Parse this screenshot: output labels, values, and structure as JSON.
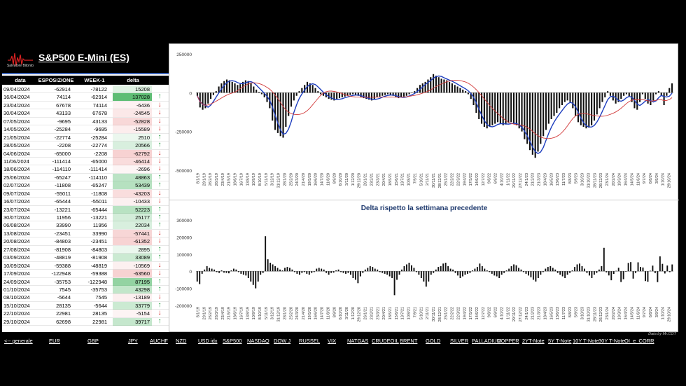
{
  "header": {
    "logo_text": "Salvatore Bitonto",
    "title": "S&P500 E-Mini (ES)"
  },
  "columns": {
    "date": "data",
    "exposure": "ESPOSIZIONE LS",
    "week": "WEEK-1",
    "delta": "delta"
  },
  "rows": [
    {
      "date": "09/04/2024",
      "exp": "-62914",
      "wk": "-78122",
      "delta": "15208",
      "dir": ""
    },
    {
      "date": "16/04/2024",
      "exp": "74114",
      "wk": "-62914",
      "delta": "137028",
      "dir": "up"
    },
    {
      "date": "23/04/2024",
      "exp": "67678",
      "wk": "74114",
      "delta": "-6436",
      "dir": "down"
    },
    {
      "date": "30/04/2024",
      "exp": "43133",
      "wk": "67678",
      "delta": "-24545",
      "dir": "down"
    },
    {
      "date": "07/05/2024",
      "exp": "-9695",
      "wk": "43133",
      "delta": "-52828",
      "dir": "down"
    },
    {
      "date": "14/05/2024",
      "exp": "-25284",
      "wk": "-9695",
      "delta": "-15589",
      "dir": "down"
    },
    {
      "date": "21/05/2024",
      "exp": "-22774",
      "wk": "-25284",
      "delta": "2510",
      "dir": "up"
    },
    {
      "date": "28/05/2024",
      "exp": "-2208",
      "wk": "-22774",
      "delta": "20566",
      "dir": "up"
    },
    {
      "date": "04/06/2024",
      "exp": "-65000",
      "wk": "-2208",
      "delta": "-62792",
      "dir": "down"
    },
    {
      "date": "11/06/2024",
      "exp": "-111414",
      "wk": "-65000",
      "delta": "-46414",
      "dir": "down"
    },
    {
      "date": "18/06/2024",
      "exp": "-114110",
      "wk": "-111414",
      "delta": "-2696",
      "dir": "down"
    },
    {
      "date": "25/06/2024",
      "exp": "-65247",
      "wk": "-114110",
      "delta": "48863",
      "dir": "up"
    },
    {
      "date": "02/07/2024",
      "exp": "-11808",
      "wk": "-65247",
      "delta": "53439",
      "dir": "up"
    },
    {
      "date": "09/07/2024",
      "exp": "-55011",
      "wk": "-11808",
      "delta": "-43203",
      "dir": "down"
    },
    {
      "date": "16/07/2024",
      "exp": "-65444",
      "wk": "-55011",
      "delta": "-10433",
      "dir": "down"
    },
    {
      "date": "23/07/2024",
      "exp": "-13221",
      "wk": "-65444",
      "delta": "52223",
      "dir": "up"
    },
    {
      "date": "30/07/2024",
      "exp": "11956",
      "wk": "-13221",
      "delta": "25177",
      "dir": "up"
    },
    {
      "date": "06/08/2024",
      "exp": "33990",
      "wk": "11956",
      "delta": "22034",
      "dir": "up"
    },
    {
      "date": "13/08/2024",
      "exp": "-23451",
      "wk": "33990",
      "delta": "-57441",
      "dir": "down"
    },
    {
      "date": "20/08/2024",
      "exp": "-84803",
      "wk": "-23451",
      "delta": "-61352",
      "dir": "down"
    },
    {
      "date": "27/08/2024",
      "exp": "-81908",
      "wk": "-84803",
      "delta": "2895",
      "dir": "up"
    },
    {
      "date": "03/09/2024",
      "exp": "-48819",
      "wk": "-81908",
      "delta": "33089",
      "dir": "up"
    },
    {
      "date": "10/09/2024",
      "exp": "-59388",
      "wk": "-48819",
      "delta": "-10569",
      "dir": "down"
    },
    {
      "date": "17/09/2024",
      "exp": "-122948",
      "wk": "-59388",
      "delta": "-63560",
      "dir": "down"
    },
    {
      "date": "24/09/2024",
      "exp": "-35753",
      "wk": "-122948",
      "delta": "87195",
      "dir": "up"
    },
    {
      "date": "01/10/2024",
      "exp": "7545",
      "wk": "-35753",
      "delta": "43298",
      "dir": "up"
    },
    {
      "date": "08/10/2024",
      "exp": "-5644",
      "wk": "7545",
      "delta": "-13189",
      "dir": "down"
    },
    {
      "date": "15/10/2024",
      "exp": "28135",
      "wk": "-5644",
      "delta": "33779",
      "dir": "up"
    },
    {
      "date": "22/10/2024",
      "exp": "22981",
      "wk": "28135",
      "delta": "-5154",
      "dir": "down"
    },
    {
      "date": "29/10/2024",
      "exp": "62698",
      "wk": "22981",
      "delta": "39717",
      "dir": "up"
    }
  ],
  "colors": {
    "up_bg": "#5ebd74",
    "down_bg": "#f3b9b9",
    "ma_fast": "#1f3fbf",
    "ma_slow": "#d23a3a",
    "bar": "#111111"
  },
  "chart_data": [
    {
      "type": "bar",
      "title": "",
      "ylim": [
        -500000,
        250000
      ],
      "yticks": [
        "250000",
        "0",
        "-250000",
        "-500000"
      ],
      "xtick_labels": [
        "8/1/19",
        "29/1/19",
        "26/2/19",
        "26/3/19",
        "23/4/19",
        "21/5/19",
        "18/6/19",
        "16/7/19",
        "13/8/19",
        "10/9/19",
        "8/10/19",
        "5/11/19",
        "3/12/19",
        "31/12/19",
        "28/1/20",
        "25/2/20",
        "24/3/20",
        "21/4/20",
        "19/5/20",
        "16/6/20",
        "14/7/20",
        "11/8/20",
        "8/9/20",
        "6/10/20",
        "3/11/20",
        "1/12/20",
        "29/12/20",
        "26/1/21",
        "23/2/21",
        "23/3/21",
        "20/4/21",
        "18/5/21",
        "15/6/21",
        "13/7/21",
        "10/8/21",
        "7/9/21",
        "5/10/21",
        "2/11/21",
        "30/11/21",
        "28/12/21",
        "25/1/22",
        "22/2/22",
        "22/3/22",
        "19/4/22",
        "17/5/22",
        "14/6/22",
        "12/7/22",
        "9/8/22",
        "6/9/22",
        "4/10/22",
        "1/11/22",
        "29/11/22",
        "27/12/22",
        "24/1/23",
        "21/2/23",
        "21/3/23",
        "18/4/23",
        "16/5/23",
        "13/6/23",
        "11/7/23",
        "8/8/23",
        "5/9/23",
        "3/10/23",
        "31/10/23",
        "28/11/23",
        "26/12/23",
        "23/1/24",
        "20/2/24",
        "19/3/24",
        "16/4/24",
        "14/5/24",
        "11/6/24",
        "9/7/24",
        "6/8/24",
        "3/9/24",
        "1/10/24",
        "29/10/24"
      ],
      "series": [
        {
          "kind": "bar",
          "values": [
            -20000,
            -95000,
            -110000,
            -100000,
            -70000,
            -40000,
            -15000,
            10000,
            40000,
            60000,
            75000,
            85000,
            80000,
            70000,
            60000,
            50000,
            55000,
            70000,
            80000,
            75000,
            60000,
            40000,
            20000,
            5000,
            -10000,
            -30000,
            -60000,
            -100000,
            -180000,
            -240000,
            -260000,
            -280000,
            -290000,
            -220000,
            -150000,
            -90000,
            -50000,
            -20000,
            10000,
            30000,
            50000,
            70000,
            60000,
            50000,
            30000,
            10000,
            -10000,
            -20000,
            -30000,
            -40000,
            -45000,
            -50000,
            -40000,
            -35000,
            -30000,
            -25000,
            -20000,
            -15000,
            -10000,
            -15000,
            -20000,
            -30000,
            -35000,
            -40000,
            -45000,
            -50000,
            -40000,
            -30000,
            -25000,
            -20000,
            -15000,
            -10000,
            -15000,
            -20000,
            -30000,
            -35000,
            -30000,
            -25000,
            -20000,
            -10000,
            0,
            10000,
            30000,
            50000,
            60000,
            70000,
            85000,
            100000,
            120000,
            110000,
            100000,
            90000,
            85000,
            80000,
            70000,
            60000,
            50000,
            40000,
            30000,
            20000,
            10000,
            -10000,
            -40000,
            -80000,
            -130000,
            -170000,
            -200000,
            -220000,
            -230000,
            -220000,
            -210000,
            -200000,
            -190000,
            -200000,
            -210000,
            -205000,
            -195000,
            -190000,
            -200000,
            -210000,
            -230000,
            -250000,
            -300000,
            -330000,
            -370000,
            -400000,
            -420000,
            -380000,
            -330000,
            -280000,
            -240000,
            -200000,
            -170000,
            -150000,
            -130000,
            -100000,
            -80000,
            -60000,
            -50000,
            -60000,
            -100000,
            -150000,
            -190000,
            -210000,
            -220000,
            -230000,
            -225000,
            -210000,
            -180000,
            -140000,
            -100000,
            -60000,
            -30000,
            10000,
            -20000,
            -50000,
            -70000,
            -60000,
            -40000,
            -20000,
            -10000,
            -25000,
            -60000,
            -100000,
            -110000,
            -60000,
            -10000,
            -40000,
            -70000,
            -80000,
            -50000,
            -10000,
            10000,
            -20000,
            -80000,
            -20000,
            30000,
            60000
          ]
        },
        {
          "kind": "line",
          "name": "",
          "color": "#1f3fbf"
        },
        {
          "kind": "line",
          "name": "",
          "color": "#d23a3a"
        }
      ]
    },
    {
      "type": "bar",
      "title": "Delta rispetto la settimana precedente",
      "ylim": [
        -200000,
        300000
      ],
      "yticks": [
        "300000",
        "200000",
        "100000",
        "0",
        "-100000",
        "-200000"
      ],
      "xtick_labels": [
        "8/1/19",
        "29/1/19",
        "26/2/19",
        "26/3/19",
        "23/4/19",
        "21/5/19",
        "18/6/19",
        "16/7/19",
        "13/8/19",
        "10/9/19",
        "8/10/19",
        "5/11/19",
        "3/12/19",
        "31/12/19",
        "28/1/20",
        "25/2/20",
        "24/3/20",
        "21/4/20",
        "19/5/20",
        "16/6/20",
        "14/7/20",
        "11/8/20",
        "8/9/20",
        "6/10/20",
        "3/11/20",
        "1/12/20",
        "29/12/20",
        "26/1/21",
        "23/2/21",
        "23/3/21",
        "20/4/21",
        "18/5/21",
        "15/6/21",
        "13/7/21",
        "10/8/21",
        "7/9/21",
        "5/10/21",
        "2/11/21",
        "30/11/21",
        "28/12/21",
        "25/1/22",
        "22/2/22",
        "22/3/22",
        "19/4/22",
        "17/5/22",
        "14/6/22",
        "12/7/22",
        "9/8/22",
        "6/9/22",
        "4/10/22",
        "1/11/22",
        "29/11/22",
        "27/12/22",
        "24/1/23",
        "21/2/23",
        "21/3/23",
        "18/4/23",
        "16/5/23",
        "13/6/23",
        "11/7/23",
        "8/8/23",
        "5/9/23",
        "3/10/23",
        "31/10/23",
        "28/11/23",
        "26/12/23",
        "23/1/24",
        "20/2/24",
        "19/3/24",
        "16/4/24",
        "14/5/24",
        "11/6/24",
        "9/7/24",
        "6/8/24",
        "3/9/24",
        "1/10/24",
        "29/10/24"
      ],
      "series": [
        {
          "kind": "bar",
          "values": [
            -60000,
            -75000,
            -15000,
            10000,
            30000,
            20000,
            15000,
            10000,
            -5000,
            -10000,
            5000,
            -8000,
            -10000,
            -12000,
            5000,
            15000,
            10000,
            -5000,
            -15000,
            -20000,
            -25000,
            -40000,
            -60000,
            -80000,
            -100000,
            -60000,
            -20000,
            -10000,
            205000,
            70000,
            50000,
            40000,
            30000,
            20000,
            10000,
            5000,
            20000,
            25000,
            20000,
            10000,
            -5000,
            -15000,
            -20000,
            -10000,
            -5000,
            -15000,
            -20000,
            -10000,
            -5000,
            15000,
            20000,
            15000,
            10000,
            -10000,
            -20000,
            -10000,
            -8000,
            5000,
            10000,
            -5000,
            -10000,
            -15000,
            -10000,
            -20000,
            -40000,
            -50000,
            -70000,
            -30000,
            -10000,
            10000,
            20000,
            30000,
            25000,
            15000,
            10000,
            -5000,
            -10000,
            -15000,
            -20000,
            -30000,
            -40000,
            -140000,
            -50000,
            -20000,
            10000,
            30000,
            40000,
            50000,
            35000,
            20000,
            -5000,
            -20000,
            -40000,
            -60000,
            -90000,
            -60000,
            -20000,
            -10000,
            10000,
            25000,
            30000,
            45000,
            50000,
            30000,
            15000,
            10000,
            -10000,
            -25000,
            -40000,
            -30000,
            -20000,
            -15000,
            -10000,
            5000,
            15000,
            25000,
            45000,
            30000,
            15000,
            5000,
            -5000,
            -15000,
            -25000,
            -30000,
            -40000,
            -20000,
            -10000,
            5000,
            15000,
            30000,
            40000,
            35000,
            20000,
            10000,
            -5000,
            -15000,
            -25000,
            -35000,
            -50000,
            -60000,
            -40000,
            -20000,
            -5000,
            15000,
            25000,
            30000,
            20000,
            10000,
            -10000,
            -20000,
            -30000,
            -40000,
            -20000,
            -10000,
            5000,
            25000,
            40000,
            45000,
            30000,
            15000,
            -10000,
            -25000,
            -40000,
            -20000,
            -10000,
            10000,
            30000,
            137028,
            -6436,
            -24545,
            -52828,
            -15589,
            2510,
            20566,
            -62792,
            -46414,
            -2696,
            48863,
            53439,
            -43203,
            -10433,
            52223,
            25177,
            22034,
            -57441,
            -61352,
            2895,
            33089,
            -10569,
            -63560,
            87195,
            43298,
            -13189,
            33779,
            -5154,
            39717
          ]
        }
      ]
    }
  ],
  "credit": "Data by Mr.COT",
  "nav": [
    "<-- generale",
    "EUR",
    "GBP",
    "JPY",
    "AUCHF",
    "NZD",
    "USD idx",
    "S&P500",
    "NASDAQ",
    "DOW J",
    "RUSSEL",
    "VIX",
    "NATGAS",
    "CRUDEOIL",
    "BRENT",
    "GOLD",
    "SILVER",
    "PALLADIUM",
    "COPPER",
    "2YT-Note",
    "5Y T-Note",
    "10Y T-Note",
    "30Y T-Note",
    "OI_e_CORR"
  ]
}
